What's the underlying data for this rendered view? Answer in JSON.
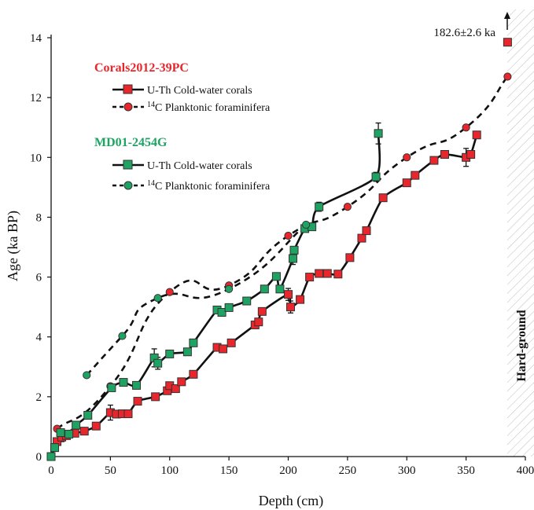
{
  "chart_data": {
    "type": "line",
    "xlabel": "Depth (cm)",
    "ylabel": "Age (ka BP)",
    "xlim": [
      0,
      400
    ],
    "ylim": [
      0,
      14
    ],
    "x_ticks": [
      "0",
      "50",
      "100",
      "150",
      "200",
      "250",
      "300",
      "350",
      "400"
    ],
    "y_ticks": [
      "0",
      "2",
      "4",
      "6",
      "8",
      "10",
      "12",
      "14"
    ],
    "grid": false,
    "annotations": {
      "hardground": "Hard-ground",
      "off_scale_age": "182.6±2.6 ka"
    },
    "legend": {
      "placement": "top-left",
      "groups": [
        {
          "title": "Corals2012-39PC",
          "color": "#e8262c",
          "entries": [
            "U-Th Cold-water corals",
            "Planktonic foraminifera"
          ]
        },
        {
          "title": "MD01-2454G",
          "color": "#1fa363",
          "entries": [
            "U-Th Cold-water corals",
            "Planktonic foraminifera"
          ]
        }
      ],
      "isotope_prefix": "14C"
    },
    "series": [
      {
        "name": "Corals2012-39PC U-Th Cold-water corals",
        "style": "solid",
        "marker": "square",
        "color": "#e8262c",
        "x": [
          0,
          3,
          5,
          9,
          13,
          20,
          28,
          38,
          50,
          55,
          60,
          65,
          73,
          88,
          98,
          100,
          105,
          110,
          120,
          140,
          145,
          152,
          172,
          175,
          178,
          200,
          202,
          210,
          218,
          226,
          233,
          242,
          252,
          262,
          266,
          280,
          300,
          307,
          323,
          332,
          350,
          354,
          359
        ],
        "y": [
          0,
          0.3,
          0.5,
          0.65,
          0.7,
          0.78,
          0.85,
          1.02,
          1.47,
          1.42,
          1.43,
          1.43,
          1.85,
          2.0,
          2.2,
          2.37,
          2.27,
          2.5,
          2.75,
          3.65,
          3.6,
          3.8,
          4.4,
          4.5,
          4.85,
          5.42,
          5.0,
          5.25,
          6.0,
          6.12,
          6.12,
          6.1,
          6.65,
          7.3,
          7.55,
          8.65,
          9.15,
          9.4,
          9.9,
          10.1,
          10.0,
          10.1,
          10.75
        ],
        "errors": [
          0,
          0,
          0,
          0.15,
          0,
          0,
          0,
          0,
          0.25,
          0,
          0,
          0,
          0,
          0,
          0,
          0,
          0,
          0,
          0,
          0,
          0,
          0,
          0,
          0,
          0,
          0.2,
          0.2,
          0,
          0,
          0,
          0,
          0,
          0,
          0,
          0,
          0,
          0,
          0,
          0,
          0,
          0.3,
          0,
          0
        ],
        "off_scale_point": {
          "x": 385,
          "y": 13.85
        }
      },
      {
        "name": "Corals2012-39PC Planktonic foraminifera",
        "style": "dashed",
        "marker": "circle",
        "color": "#e8262c",
        "x": [
          5,
          50,
          100,
          150,
          200,
          250,
          300,
          350,
          385
        ],
        "y": [
          0.93,
          2.35,
          5.5,
          5.72,
          7.38,
          8.35,
          10.0,
          11.0,
          12.7
        ]
      },
      {
        "name": "MD01-2454G U-Th Cold-water corals",
        "style": "solid",
        "marker": "square",
        "color": "#1fa363",
        "x": [
          0,
          3,
          8,
          15,
          21,
          31,
          51,
          61,
          72,
          87,
          90,
          100,
          115,
          120,
          140,
          144,
          150,
          165,
          180,
          190,
          193,
          204,
          205,
          214,
          220,
          226,
          274,
          276
        ],
        "y": [
          0,
          0.3,
          0.8,
          0.75,
          1.05,
          1.38,
          2.3,
          2.48,
          2.38,
          3.3,
          3.12,
          3.43,
          3.5,
          3.8,
          4.9,
          4.82,
          4.98,
          5.2,
          5.6,
          6.02,
          5.6,
          6.62,
          6.9,
          7.62,
          7.68,
          8.35,
          9.35,
          10.8
        ],
        "errors": [
          0,
          0,
          0,
          0,
          0,
          0,
          0,
          0,
          0,
          0.3,
          0.2,
          0,
          0,
          0.1,
          0,
          0,
          0,
          0,
          0,
          0.1,
          0,
          0.2,
          0,
          0,
          0,
          0.15,
          0.15,
          0.35
        ]
      },
      {
        "name": "MD01-2454G Planktonic foraminifera",
        "style": "dashed",
        "marker": "circle",
        "color": "#1fa363",
        "x": [
          30,
          60,
          90,
          150,
          215
        ],
        "y": [
          2.72,
          4.03,
          5.3,
          5.6,
          7.75
        ]
      }
    ]
  },
  "colors": {
    "corals2012": "#e8262c",
    "md01": "#1fa363",
    "hatch": "#bbbbbb"
  }
}
